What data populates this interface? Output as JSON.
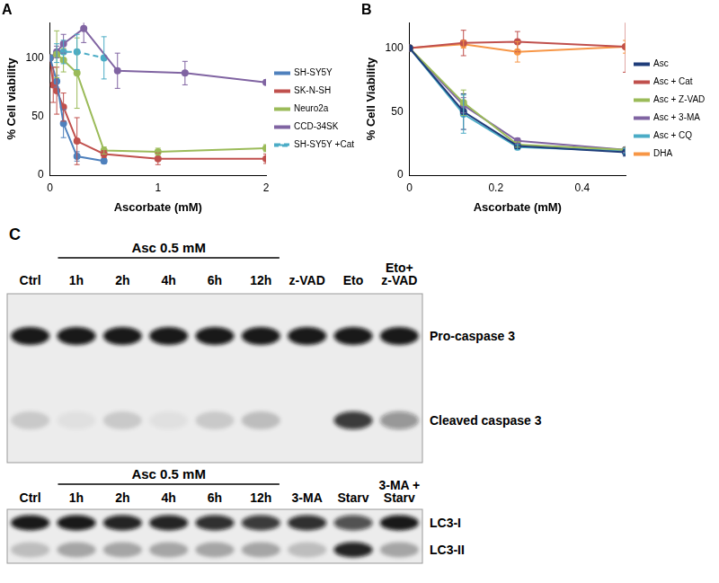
{
  "chart_data": [
    {
      "type": "line",
      "title": "A",
      "x_label": "Ascorbate (mM)",
      "y_label": "% Cell viability",
      "xlim": [
        0,
        2
      ],
      "xticks": [
        0,
        1,
        2
      ],
      "ylim": [
        0,
        130
      ],
      "yticks": [
        0,
        50,
        100
      ],
      "grid": false,
      "legend": "right",
      "marker": "circle",
      "series": [
        {
          "name": "SH-SY5Y",
          "color": "#4f81bd",
          "x": [
            0,
            0.0625,
            0.125,
            0.25,
            0.5
          ],
          "values": [
            100,
            80,
            44,
            16,
            12
          ],
          "errors": [
            0,
            5,
            12,
            4,
            2
          ]
        },
        {
          "name": "SK-N-SH",
          "color": "#c0504d",
          "x": [
            0,
            0.03,
            0.0625,
            0.125,
            0.25,
            0.5,
            1,
            2
          ],
          "values": [
            100,
            77,
            72,
            58,
            29,
            18,
            14,
            14
          ],
          "errors": [
            0,
            15,
            20,
            12,
            20,
            3,
            5,
            4
          ]
        },
        {
          "name": "Neuro2a",
          "color": "#9bbb59",
          "x": [
            0,
            0.0625,
            0.125,
            0.25,
            0.5,
            1,
            2
          ],
          "values": [
            100,
            103,
            98,
            87,
            21,
            20,
            23
          ],
          "errors": [
            0,
            20,
            10,
            30,
            3,
            3,
            3
          ]
        },
        {
          "name": "CCD-34SK",
          "color": "#8064a2",
          "x": [
            0,
            0.0625,
            0.125,
            0.3125,
            0.625,
            1.25,
            2
          ],
          "values": [
            100,
            105,
            112,
            125,
            89,
            87,
            79
          ],
          "errors": [
            0,
            5,
            8,
            12,
            15,
            10,
            2
          ]
        },
        {
          "name": "SH-SY5Y +Cat",
          "color": "#4bacc6",
          "line_style": "dashed",
          "x": [
            0,
            0.0625,
            0.125,
            0.25,
            0.5
          ],
          "values": [
            100,
            104,
            105,
            105,
            100
          ],
          "errors": [
            0,
            8,
            10,
            15,
            18
          ]
        }
      ]
    },
    {
      "type": "line",
      "title": "B",
      "x_label": "Ascorbate (mM)",
      "y_label": "% Cell Viability",
      "xlim": [
        0,
        0.5
      ],
      "xticks": [
        0,
        0.2,
        0.4
      ],
      "ylim": [
        0,
        120
      ],
      "yticks": [
        0,
        50,
        100
      ],
      "grid": false,
      "legend": "right",
      "marker": "circle",
      "series": [
        {
          "name": "Asc",
          "color": "#1f3d7a",
          "x": [
            0,
            0.125,
            0.25,
            0.5
          ],
          "values": [
            100,
            50,
            23,
            18
          ],
          "errors": [
            0,
            14,
            2,
            3
          ]
        },
        {
          "name": "Asc + Cat",
          "color": "#c0504d",
          "x": [
            0,
            0.125,
            0.25,
            0.5
          ],
          "values": [
            100,
            104,
            105,
            101
          ],
          "errors": [
            0,
            10,
            8,
            20
          ]
        },
        {
          "name": "Asc + Z-VAD",
          "color": "#9bbb59",
          "x": [
            0,
            0.125,
            0.25,
            0.5
          ],
          "values": [
            100,
            57,
            24,
            20
          ],
          "errors": [
            0,
            10,
            2,
            2
          ]
        },
        {
          "name": "Asc + 3-MA",
          "color": "#8064a2",
          "x": [
            0,
            0.125,
            0.25,
            0.5
          ],
          "values": [
            100,
            55,
            27,
            20
          ],
          "errors": [
            0,
            6,
            2,
            2
          ]
        },
        {
          "name": "Asc + CQ",
          "color": "#4bacc6",
          "x": [
            0,
            0.125,
            0.25,
            0.5
          ],
          "values": [
            100,
            48,
            22,
            19
          ],
          "errors": [
            0,
            15,
            2,
            2
          ]
        },
        {
          "name": "DHA",
          "color": "#f79646",
          "x": [
            0,
            0.125,
            0.25,
            0.5
          ],
          "values": [
            100,
            103,
            97,
            101
          ],
          "errors": [
            0,
            3,
            8,
            5
          ]
        }
      ]
    }
  ],
  "blot": {
    "title": "C",
    "panels": [
      {
        "group_label": "Asc 0.5 mM",
        "group_lanes": [
          1,
          5
        ],
        "lanes": [
          "Ctrl",
          "1h",
          "2h",
          "4h",
          "6h",
          "12h",
          "z-VAD",
          "Eto",
          "Eto+\nz-VAD"
        ],
        "bands": [
          {
            "label": "Pro-caspase 3",
            "intensity": [
              0.95,
              0.95,
              0.95,
              0.95,
              0.95,
              0.95,
              0.95,
              0.95,
              0.95
            ]
          },
          {
            "label": "Cleaved caspase 3",
            "intensity": [
              0.15,
              0.05,
              0.15,
              0.05,
              0.15,
              0.2,
              0,
              0.8,
              0.4
            ]
          }
        ]
      },
      {
        "group_label": "Asc 0.5 mM",
        "group_lanes": [
          1,
          5
        ],
        "lanes": [
          "Ctrl",
          "1h",
          "2h",
          "4h",
          "6h",
          "12h",
          "3-MA",
          "Starv",
          "3-MA +\nStarv"
        ],
        "bands": [
          {
            "label": "LC3-I",
            "intensity": [
              0.95,
              0.95,
              0.9,
              0.9,
              0.85,
              0.8,
              0.85,
              0.7,
              0.95
            ]
          },
          {
            "label": "LC3-II",
            "intensity": [
              0.2,
              0.3,
              0.3,
              0.3,
              0.3,
              0.3,
              0.2,
              0.9,
              0.3
            ]
          }
        ]
      }
    ]
  }
}
